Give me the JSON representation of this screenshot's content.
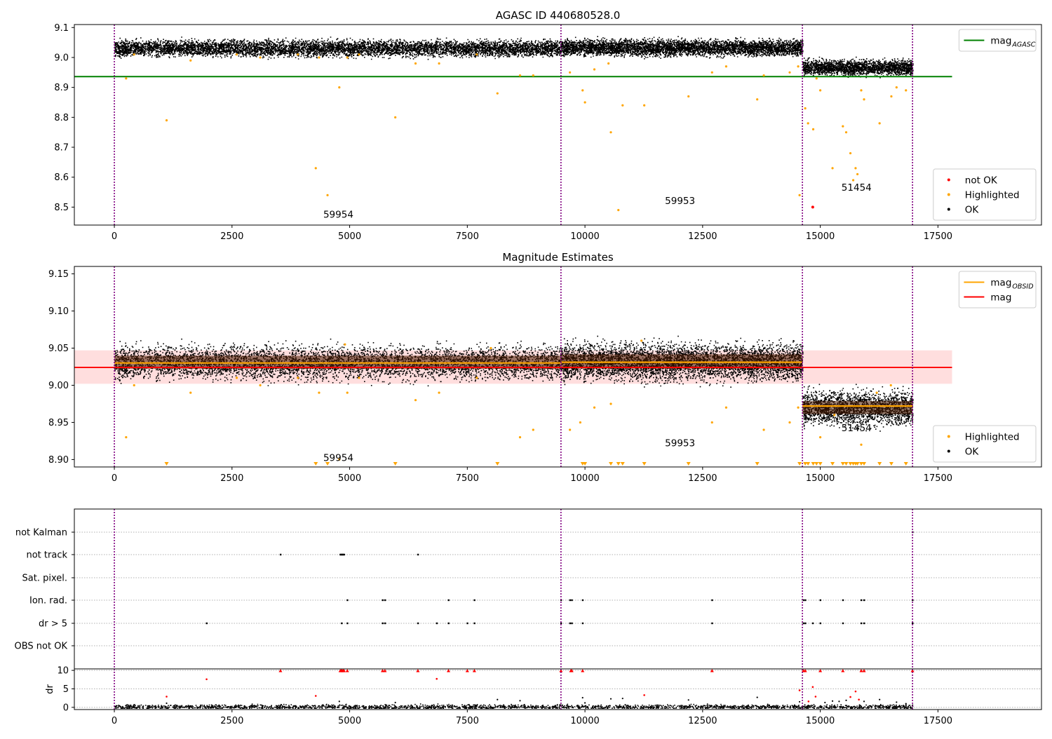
{
  "chart_data": [
    {
      "type": "scatter",
      "title": "AGASC ID 440680528.0",
      "xlim": [
        -850,
        19700
      ],
      "ylim": [
        8.44,
        9.11
      ],
      "xticks": [
        "0",
        "2500",
        "5000",
        "7500",
        "10000",
        "12500",
        "15000",
        "17500"
      ],
      "xtick_values": [
        0,
        2500,
        5000,
        7500,
        10000,
        12500,
        15000,
        17500
      ],
      "yticks": [
        "8.5",
        "8.6",
        "8.7",
        "8.8",
        "8.9",
        "9.0",
        "9.1"
      ],
      "ytick_values": [
        8.5,
        8.6,
        8.7,
        8.8,
        8.9,
        9.0,
        9.1
      ],
      "obsid_boundaries": [
        0,
        9490,
        14620,
        16960
      ],
      "segments": [
        {
          "x_start": 0,
          "x_end": 9490,
          "mean": 9.032,
          "spread": 0.013
        },
        {
          "x_start": 9490,
          "x_end": 14620,
          "mean": 9.034,
          "spread": 0.013
        },
        {
          "x_start": 14620,
          "x_end": 16960,
          "mean": 8.968,
          "spread": 0.012
        }
      ],
      "reference_line": {
        "label": "mag",
        "subscript": "AGASC",
        "value": 8.936,
        "x_start": -850,
        "x_end": 17800,
        "color": "#008000"
      },
      "highlighted_points": [
        [
          250,
          8.93
        ],
        [
          1110,
          8.79
        ],
        [
          4280,
          8.63
        ],
        [
          4530,
          8.54
        ],
        [
          4780,
          8.9
        ],
        [
          5970,
          8.8
        ],
        [
          8140,
          8.88
        ],
        [
          8620,
          8.94
        ],
        [
          9680,
          8.95
        ],
        [
          9950,
          8.89
        ],
        [
          10000,
          8.85
        ],
        [
          10550,
          8.75
        ],
        [
          10710,
          8.49
        ],
        [
          10800,
          8.84
        ],
        [
          11260,
          8.84
        ],
        [
          12200,
          8.87
        ],
        [
          13660,
          8.86
        ],
        [
          14560,
          8.54
        ],
        [
          14680,
          8.83
        ],
        [
          14740,
          8.78
        ],
        [
          14850,
          8.76
        ],
        [
          14920,
          8.93
        ],
        [
          15000,
          8.89
        ],
        [
          15260,
          8.63
        ],
        [
          15480,
          8.77
        ],
        [
          15550,
          8.75
        ],
        [
          15640,
          8.68
        ],
        [
          15700,
          8.59
        ],
        [
          15750,
          8.63
        ],
        [
          15790,
          8.61
        ],
        [
          15870,
          8.89
        ],
        [
          15930,
          8.86
        ],
        [
          16260,
          8.78
        ],
        [
          16510,
          8.87
        ],
        [
          16620,
          8.9
        ],
        [
          16820,
          8.89
        ],
        [
          420,
          9.01
        ],
        [
          1620,
          8.99
        ],
        [
          2600,
          9.01
        ],
        [
          3100,
          9.0
        ],
        [
          3900,
          9.01
        ],
        [
          4350,
          9.0
        ],
        [
          4950,
          9.0
        ],
        [
          5200,
          9.01
        ],
        [
          6400,
          8.98
        ],
        [
          6900,
          8.98
        ],
        [
          7700,
          9.01
        ],
        [
          8900,
          8.94
        ],
        [
          10200,
          8.96
        ],
        [
          10500,
          8.98
        ],
        [
          12700,
          8.95
        ],
        [
          13000,
          8.97
        ],
        [
          13800,
          8.94
        ],
        [
          14350,
          8.95
        ],
        [
          14530,
          8.97
        ]
      ],
      "not_ok_points": [
        [
          14840,
          8.5
        ]
      ],
      "annotations": [
        {
          "text": "59954",
          "x": 4440,
          "y": 8.465
        },
        {
          "text": "59953",
          "x": 11700,
          "y": 8.51
        },
        {
          "text": "51454",
          "x": 15450,
          "y": 8.555
        }
      ],
      "legends": [
        {
          "position": "upper-right",
          "entries": [
            {
              "label": "mag",
              "subscript": "AGASC",
              "kind": "line",
              "color": "#008000"
            }
          ]
        },
        {
          "position": "lower-right",
          "entries": [
            {
              "label": "not OK",
              "kind": "dot",
              "color": "#ff0000"
            },
            {
              "label": "Highlighted",
              "kind": "dot",
              "color": "#ffa500"
            },
            {
              "label": "OK",
              "kind": "dot",
              "color": "#000000"
            }
          ]
        }
      ]
    },
    {
      "type": "scatter",
      "title": "Magnitude Estimates",
      "xlim": [
        -850,
        19700
      ],
      "ylim": [
        8.89,
        9.16
      ],
      "xticks": [
        "0",
        "2500",
        "5000",
        "7500",
        "10000",
        "12500",
        "15000",
        "17500"
      ],
      "xtick_values": [
        0,
        2500,
        5000,
        7500,
        10000,
        12500,
        15000,
        17500
      ],
      "yticks": [
        "8.90",
        "8.95",
        "9.00",
        "9.05",
        "9.10",
        "9.15"
      ],
      "ytick_values": [
        8.9,
        8.95,
        9.0,
        9.05,
        9.1,
        9.15
      ],
      "obsid_boundaries": [
        0,
        9490,
        14620,
        16960
      ],
      "segments": [
        {
          "x_start": 0,
          "x_end": 9490,
          "mean": 9.031,
          "spread": 0.011
        },
        {
          "x_start": 9490,
          "x_end": 14620,
          "mean": 9.032,
          "spread": 0.012
        },
        {
          "x_start": 14620,
          "x_end": 16960,
          "mean": 8.97,
          "spread": 0.011
        }
      ],
      "obsid_mag_lines": [
        {
          "x_start": 0,
          "x_end": 9490,
          "value": 9.03
        },
        {
          "x_start": 9490,
          "x_end": 14620,
          "value": 9.031
        },
        {
          "x_start": 14620,
          "x_end": 16960,
          "value": 8.972
        }
      ],
      "mag_line": {
        "value": 9.024,
        "band": [
          9.002,
          9.047
        ],
        "x_start": -850,
        "x_end": 17800
      },
      "highlighted_points": [
        [
          250,
          8.93
        ],
        [
          420,
          9.0
        ],
        [
          1620,
          8.99
        ],
        [
          2600,
          9.01
        ],
        [
          3100,
          9.0
        ],
        [
          3900,
          9.01
        ],
        [
          4350,
          8.99
        ],
        [
          4780,
          8.9
        ],
        [
          4950,
          8.99
        ],
        [
          5200,
          9.01
        ],
        [
          6400,
          8.98
        ],
        [
          6900,
          8.99
        ],
        [
          7700,
          9.01
        ],
        [
          8620,
          8.93
        ],
        [
          8900,
          8.94
        ],
        [
          9680,
          8.94
        ],
        [
          9900,
          8.95
        ],
        [
          10200,
          8.97
        ],
        [
          10550,
          8.975
        ],
        [
          12700,
          8.95
        ],
        [
          13000,
          8.97
        ],
        [
          13800,
          8.94
        ],
        [
          14350,
          8.95
        ],
        [
          14530,
          8.97
        ],
        [
          15000,
          8.93
        ],
        [
          15300,
          8.96
        ],
        [
          15870,
          8.92
        ],
        [
          16200,
          8.99
        ],
        [
          16500,
          9.0
        ],
        [
          8000,
          9.05
        ],
        [
          4900,
          9.055
        ],
        [
          11200,
          9.06
        ]
      ],
      "below_axis_markers": [
        1110,
        4280,
        4530,
        5970,
        8140,
        9950,
        10000,
        10550,
        10710,
        10800,
        11260,
        12200,
        13660,
        14560,
        14680,
        14740,
        14850,
        14920,
        15000,
        15260,
        15480,
        15550,
        15640,
        15700,
        15750,
        15790,
        15870,
        15930,
        16260,
        16510,
        16820
      ],
      "annotations": [
        {
          "text": "59954",
          "x": 4440,
          "y": 8.898
        },
        {
          "text": "59953",
          "x": 11700,
          "y": 8.918
        },
        {
          "text": "51454",
          "x": 15450,
          "y": 8.938
        }
      ],
      "legends": [
        {
          "position": "upper-right",
          "entries": [
            {
              "label": "mag",
              "subscript": "OBSID",
              "kind": "line",
              "color": "#ffa500"
            },
            {
              "label": "mag",
              "kind": "line",
              "color": "#ff0000"
            }
          ]
        },
        {
          "position": "lower-right",
          "entries": [
            {
              "label": "Highlighted",
              "kind": "dot",
              "color": "#ffa500"
            },
            {
              "label": "OK",
              "kind": "dot",
              "color": "#000000"
            }
          ]
        }
      ]
    },
    {
      "type": "scatter",
      "xlim": [
        -850,
        19700
      ],
      "xticks": [
        "0",
        "2500",
        "5000",
        "7500",
        "10000",
        "12500",
        "15000",
        "17500"
      ],
      "xtick_values": [
        0,
        2500,
        5000,
        7500,
        10000,
        12500,
        15000,
        17500
      ],
      "obsid_boundaries": [
        0,
        9490,
        14620,
        16960
      ],
      "flag_rows": [
        "not Kalman",
        "not track",
        "Sat. pixel.",
        "Ion. rad.",
        "dr > 5",
        "OBS not OK"
      ],
      "flag_points": {
        "not track": [
          3530,
          4800,
          4820,
          4840,
          4860,
          4880,
          6450
        ],
        "Ion. rad.": [
          4950,
          5700,
          5750,
          7100,
          7650,
          9490,
          9680,
          9720,
          9950,
          12700,
          14640,
          14680,
          15000,
          15480,
          15870,
          15930,
          16960
        ],
        "dr > 5": [
          1960,
          4830,
          4950,
          5700,
          5750,
          6450,
          6850,
          7100,
          7500,
          7650,
          9490,
          9680,
          9720,
          9950,
          12700,
          14640,
          14680,
          14840,
          15000,
          15480,
          15870,
          15930,
          16960
        ],
        "not Kalman": [
          16960
        ]
      }
    },
    {
      "type": "scatter",
      "ylabel": "dr",
      "xlim": [
        -850,
        19700
      ],
      "ylim": [
        -0.6,
        10.4
      ],
      "yticks": [
        "0",
        "5",
        "10"
      ],
      "ytick_values": [
        0,
        5,
        10
      ],
      "xticks": [
        "0",
        "2500",
        "5000",
        "7500",
        "10000",
        "12500",
        "15000",
        "17500"
      ],
      "xtick_values": [
        0,
        2500,
        5000,
        7500,
        10000,
        12500,
        15000,
        17500
      ],
      "obsid_boundaries": [
        0,
        9490,
        14620,
        16960
      ],
      "baseline": {
        "x_start": 0,
        "x_end": 16960,
        "value": 0.25,
        "spread": 0.3
      },
      "capped_points": [
        3530,
        4800,
        4820,
        4840,
        4860,
        4880,
        4950,
        5700,
        5750,
        6450,
        7100,
        7500,
        7650,
        9490,
        9700,
        9720,
        9950,
        12700,
        14640,
        14680,
        15000,
        15480,
        15870,
        15930,
        16960
      ],
      "red_points": [
        [
          1110,
          2.9
        ],
        [
          1960,
          7.6
        ],
        [
          4280,
          3.1
        ],
        [
          6850,
          7.7
        ],
        [
          11260,
          3.3
        ],
        [
          14560,
          4.6
        ],
        [
          14750,
          1.6
        ],
        [
          14840,
          5.5
        ],
        [
          14900,
          2.9
        ],
        [
          15640,
          2.8
        ],
        [
          15750,
          4.3
        ],
        [
          15820,
          2.1
        ]
      ],
      "scattered_points": [
        [
          1110,
          1.1
        ],
        [
          4780,
          1.6
        ],
        [
          5970,
          1.3
        ],
        [
          8140,
          2.1
        ],
        [
          8620,
          1.8
        ],
        [
          9950,
          2.6
        ],
        [
          10000,
          1.2
        ],
        [
          10550,
          2.3
        ],
        [
          10800,
          2.4
        ],
        [
          12200,
          2.0
        ],
        [
          13660,
          2.7
        ],
        [
          14560,
          1.5
        ],
        [
          15260,
          1.7
        ],
        [
          15550,
          1.9
        ],
        [
          15930,
          1.6
        ],
        [
          16260,
          2.1
        ],
        [
          16620,
          1.4
        ],
        [
          16820,
          1.0
        ],
        [
          15100,
          1.3
        ],
        [
          15400,
          1.6
        ]
      ]
    }
  ]
}
